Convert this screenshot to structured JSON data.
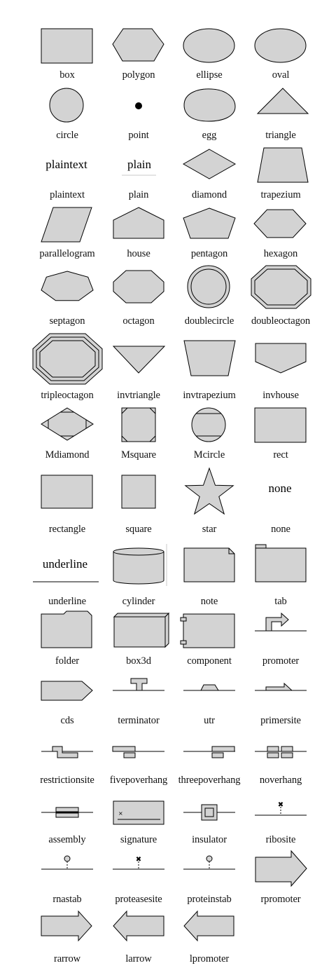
{
  "shape_fill": "#d3d3d3",
  "shape_stroke": "#000000",
  "rows": [
    [
      "box",
      "polygon",
      "ellipse",
      "oval"
    ],
    [
      "circle",
      "point",
      "egg",
      "triangle"
    ],
    [
      "plaintext",
      "plain",
      "diamond",
      "trapezium"
    ],
    [
      "parallelogram",
      "house",
      "pentagon",
      "hexagon"
    ],
    [
      "septagon",
      "octagon",
      "doublecircle",
      "doubleoctagon"
    ],
    [
      "tripleoctagon",
      "invtriangle",
      "invtrapezium",
      "invhouse"
    ],
    [
      "Mdiamond",
      "Msquare",
      "Mcircle",
      "rect"
    ],
    [
      "rectangle",
      "square",
      "star",
      "none"
    ],
    [
      "underline",
      "cylinder",
      "note",
      "tab"
    ],
    [
      "folder",
      "box3d",
      "component",
      "promoter"
    ],
    [
      "cds",
      "terminator",
      "utr",
      "primersite"
    ],
    [
      "restrictionsite",
      "fivepoverhang",
      "threepoverhang",
      "noverhang"
    ],
    [
      "assembly",
      "signature",
      "insulator",
      "ribosite"
    ],
    [
      "rnastab",
      "proteasesite",
      "proteinstab",
      "rpromoter"
    ],
    [
      "rarrow",
      "larrow",
      "lpromoter"
    ]
  ],
  "inner_text": {
    "plaintext": "plaintext",
    "plain": "plain",
    "none": "none",
    "underline": "underline"
  }
}
